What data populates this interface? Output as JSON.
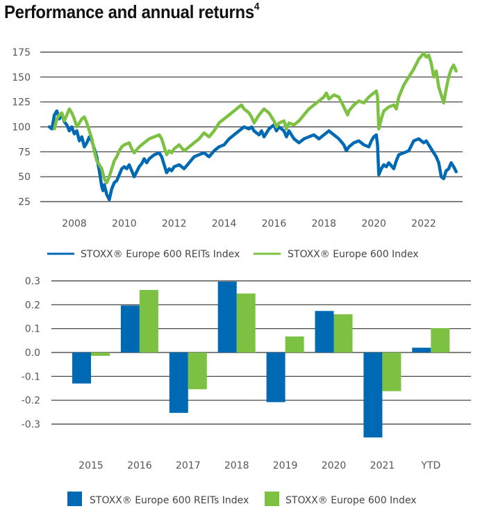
{
  "title": {
    "text": "Performance and annual returns",
    "footnote": "4"
  },
  "colors": {
    "reits": "#0069b4",
    "stoxx": "#7dc143",
    "grid": "#333333",
    "tick_text": "#666666"
  },
  "chart_data": [
    {
      "type": "line",
      "title": "Performance",
      "xlabel": "",
      "ylabel": "",
      "xlim": [
        2006.9,
        2023.4
      ],
      "ylim": [
        25,
        175
      ],
      "yticks": [
        175,
        150,
        125,
        100,
        75,
        50,
        25
      ],
      "xticks": [
        2008,
        2010,
        2012,
        2014,
        2016,
        2018,
        2020,
        2022
      ],
      "xtick_labels": [
        "2008",
        "2010",
        "2012",
        "2014",
        "2016",
        "2018",
        "2020",
        "2022"
      ],
      "grid": true,
      "legend": "bottom",
      "series": [
        {
          "name": "STOXX® Europe 600 REITs Index",
          "color": "#0069b4",
          "points": [
            [
              2007.0,
              100
            ],
            [
              2007.1,
              98
            ],
            [
              2007.2,
              112
            ],
            [
              2007.3,
              116
            ],
            [
              2007.4,
              108
            ],
            [
              2007.5,
              113
            ],
            [
              2007.6,
              105
            ],
            [
              2007.7,
              102
            ],
            [
              2007.8,
              96
            ],
            [
              2007.9,
              100
            ],
            [
              2008.0,
              93
            ],
            [
              2008.1,
              96
            ],
            [
              2008.2,
              86
            ],
            [
              2008.3,
              90
            ],
            [
              2008.4,
              80
            ],
            [
              2008.5,
              84
            ],
            [
              2008.6,
              90
            ],
            [
              2008.7,
              86
            ],
            [
              2008.8,
              78
            ],
            [
              2008.9,
              70
            ],
            [
              2009.0,
              56
            ],
            [
              2009.1,
              40
            ],
            [
              2009.15,
              36
            ],
            [
              2009.2,
              42
            ],
            [
              2009.3,
              32
            ],
            [
              2009.4,
              27
            ],
            [
              2009.5,
              38
            ],
            [
              2009.6,
              44
            ],
            [
              2009.7,
              46
            ],
            [
              2009.8,
              52
            ],
            [
              2009.9,
              58
            ],
            [
              2010.0,
              60
            ],
            [
              2010.1,
              58
            ],
            [
              2010.2,
              62
            ],
            [
              2010.3,
              56
            ],
            [
              2010.4,
              50
            ],
            [
              2010.5,
              55
            ],
            [
              2010.6,
              60
            ],
            [
              2010.7,
              63
            ],
            [
              2010.8,
              68
            ],
            [
              2010.9,
              64
            ],
            [
              2011.0,
              68
            ],
            [
              2011.2,
              72
            ],
            [
              2011.4,
              74
            ],
            [
              2011.5,
              70
            ],
            [
              2011.6,
              62
            ],
            [
              2011.7,
              54
            ],
            [
              2011.8,
              58
            ],
            [
              2011.9,
              56
            ],
            [
              2012.0,
              60
            ],
            [
              2012.2,
              62
            ],
            [
              2012.4,
              58
            ],
            [
              2012.6,
              64
            ],
            [
              2012.8,
              70
            ],
            [
              2013.0,
              72
            ],
            [
              2013.2,
              74
            ],
            [
              2013.4,
              70
            ],
            [
              2013.6,
              76
            ],
            [
              2013.8,
              80
            ],
            [
              2014.0,
              82
            ],
            [
              2014.2,
              88
            ],
            [
              2014.4,
              92
            ],
            [
              2014.6,
              96
            ],
            [
              2014.8,
              100
            ],
            [
              2015.0,
              98
            ],
            [
              2015.1,
              100
            ],
            [
              2015.2,
              96
            ],
            [
              2015.4,
              92
            ],
            [
              2015.5,
              96
            ],
            [
              2015.6,
              90
            ],
            [
              2015.8,
              98
            ],
            [
              2016.0,
              102
            ],
            [
              2016.1,
              96
            ],
            [
              2016.2,
              100
            ],
            [
              2016.4,
              96
            ],
            [
              2016.5,
              90
            ],
            [
              2016.6,
              96
            ],
            [
              2016.8,
              88
            ],
            [
              2017.0,
              84
            ],
            [
              2017.2,
              88
            ],
            [
              2017.4,
              90
            ],
            [
              2017.6,
              92
            ],
            [
              2017.8,
              88
            ],
            [
              2018.0,
              92
            ],
            [
              2018.2,
              96
            ],
            [
              2018.3,
              94
            ],
            [
              2018.5,
              90
            ],
            [
              2018.6,
              88
            ],
            [
              2018.8,
              82
            ],
            [
              2018.9,
              76
            ],
            [
              2019.0,
              80
            ],
            [
              2019.2,
              84
            ],
            [
              2019.4,
              86
            ],
            [
              2019.6,
              82
            ],
            [
              2019.8,
              80
            ],
            [
              2019.9,
              86
            ],
            [
              2020.0,
              90
            ],
            [
              2020.1,
              92
            ],
            [
              2020.15,
              82
            ],
            [
              2020.2,
              52
            ],
            [
              2020.3,
              58
            ],
            [
              2020.4,
              62
            ],
            [
              2020.5,
              60
            ],
            [
              2020.6,
              64
            ],
            [
              2020.8,
              58
            ],
            [
              2020.9,
              66
            ],
            [
              2021.0,
              72
            ],
            [
              2021.2,
              74
            ],
            [
              2021.4,
              76
            ],
            [
              2021.6,
              86
            ],
            [
              2021.8,
              88
            ],
            [
              2022.0,
              84
            ],
            [
              2022.1,
              86
            ],
            [
              2022.2,
              82
            ],
            [
              2022.4,
              74
            ],
            [
              2022.5,
              70
            ],
            [
              2022.6,
              64
            ],
            [
              2022.7,
              50
            ],
            [
              2022.8,
              48
            ],
            [
              2022.9,
              56
            ],
            [
              2023.0,
              58
            ],
            [
              2023.1,
              64
            ],
            [
              2023.2,
              60
            ],
            [
              2023.3,
              55
            ]
          ]
        },
        {
          "name": "STOXX® Europe 600 Index",
          "color": "#7dc143",
          "points": [
            [
              2007.2,
              98
            ],
            [
              2007.3,
              108
            ],
            [
              2007.4,
              112
            ],
            [
              2007.5,
              114
            ],
            [
              2007.6,
              106
            ],
            [
              2007.7,
              112
            ],
            [
              2007.8,
              118
            ],
            [
              2007.9,
              114
            ],
            [
              2008.0,
              108
            ],
            [
              2008.1,
              100
            ],
            [
              2008.2,
              104
            ],
            [
              2008.3,
              108
            ],
            [
              2008.4,
              110
            ],
            [
              2008.5,
              104
            ],
            [
              2008.6,
              96
            ],
            [
              2008.7,
              88
            ],
            [
              2008.8,
              76
            ],
            [
              2008.9,
              66
            ],
            [
              2009.0,
              62
            ],
            [
              2009.1,
              58
            ],
            [
              2009.2,
              48
            ],
            [
              2009.3,
              44
            ],
            [
              2009.4,
              50
            ],
            [
              2009.5,
              58
            ],
            [
              2009.6,
              66
            ],
            [
              2009.7,
              70
            ],
            [
              2009.8,
              76
            ],
            [
              2009.9,
              80
            ],
            [
              2010.0,
              82
            ],
            [
              2010.2,
              84
            ],
            [
              2010.3,
              78
            ],
            [
              2010.4,
              74
            ],
            [
              2010.6,
              80
            ],
            [
              2010.8,
              84
            ],
            [
              2011.0,
              88
            ],
            [
              2011.2,
              90
            ],
            [
              2011.4,
              92
            ],
            [
              2011.5,
              88
            ],
            [
              2011.6,
              80
            ],
            [
              2011.7,
              72
            ],
            [
              2011.8,
              76
            ],
            [
              2011.9,
              74
            ],
            [
              2012.0,
              78
            ],
            [
              2012.2,
              82
            ],
            [
              2012.4,
              76
            ],
            [
              2012.6,
              80
            ],
            [
              2012.8,
              84
            ],
            [
              2013.0,
              88
            ],
            [
              2013.2,
              94
            ],
            [
              2013.4,
              90
            ],
            [
              2013.6,
              96
            ],
            [
              2013.8,
              104
            ],
            [
              2014.0,
              108
            ],
            [
              2014.2,
              112
            ],
            [
              2014.4,
              116
            ],
            [
              2014.6,
              120
            ],
            [
              2014.7,
              122
            ],
            [
              2014.8,
              118
            ],
            [
              2015.0,
              114
            ],
            [
              2015.1,
              110
            ],
            [
              2015.2,
              104
            ],
            [
              2015.4,
              112
            ],
            [
              2015.6,
              118
            ],
            [
              2015.8,
              114
            ],
            [
              2016.0,
              106
            ],
            [
              2016.1,
              100
            ],
            [
              2016.2,
              104
            ],
            [
              2016.4,
              106
            ],
            [
              2016.5,
              98
            ],
            [
              2016.6,
              104
            ],
            [
              2016.8,
              102
            ],
            [
              2017.0,
              106
            ],
            [
              2017.2,
              112
            ],
            [
              2017.4,
              118
            ],
            [
              2017.6,
              122
            ],
            [
              2017.8,
              126
            ],
            [
              2018.0,
              130
            ],
            [
              2018.1,
              134
            ],
            [
              2018.2,
              128
            ],
            [
              2018.4,
              132
            ],
            [
              2018.6,
              130
            ],
            [
              2018.8,
              120
            ],
            [
              2018.95,
              112
            ],
            [
              2019.0,
              116
            ],
            [
              2019.2,
              122
            ],
            [
              2019.4,
              126
            ],
            [
              2019.6,
              124
            ],
            [
              2019.8,
              130
            ],
            [
              2020.0,
              134
            ],
            [
              2020.1,
              136
            ],
            [
              2020.15,
              130
            ],
            [
              2020.2,
              98
            ],
            [
              2020.3,
              108
            ],
            [
              2020.4,
              116
            ],
            [
              2020.6,
              120
            ],
            [
              2020.8,
              122
            ],
            [
              2020.9,
              118
            ],
            [
              2021.0,
              130
            ],
            [
              2021.2,
              142
            ],
            [
              2021.4,
              150
            ],
            [
              2021.6,
              158
            ],
            [
              2021.8,
              168
            ],
            [
              2022.0,
              174
            ],
            [
              2022.1,
              170
            ],
            [
              2022.2,
              172
            ],
            [
              2022.3,
              164
            ],
            [
              2022.4,
              150
            ],
            [
              2022.5,
              156
            ],
            [
              2022.6,
              140
            ],
            [
              2022.7,
              132
            ],
            [
              2022.8,
              124
            ],
            [
              2022.9,
              138
            ],
            [
              2023.0,
              150
            ],
            [
              2023.1,
              158
            ],
            [
              2023.2,
              162
            ],
            [
              2023.3,
              156
            ]
          ]
        }
      ]
    },
    {
      "type": "bar",
      "title": "Annual returns",
      "xlabel": "",
      "ylabel": "",
      "categories": [
        "2015",
        "2016",
        "2017",
        "2018",
        "2019",
        "2020",
        "2021",
        "YTD"
      ],
      "ylim": [
        -0.3,
        0.3
      ],
      "yticks": [
        "0.3",
        "0.2",
        "0.1",
        "0.0",
        "-0.1",
        "-0.2",
        "-0.3"
      ],
      "ytick_values": [
        0.3,
        0.2,
        0.1,
        0.0,
        -0.1,
        -0.2,
        -0.3
      ],
      "grid": true,
      "legend": "bottom",
      "series": [
        {
          "name": "STOXX® Europe 600 REITs Index",
          "color": "#0069b4",
          "values": [
            -0.13,
            0.197,
            -0.253,
            0.297,
            -0.208,
            0.174,
            -0.356,
            0.02
          ]
        },
        {
          "name": "STOXX® Europe 600 Index",
          "color": "#7dc143",
          "values": [
            -0.014,
            0.262,
            -0.154,
            0.247,
            0.067,
            0.16,
            -0.162,
            0.102
          ]
        }
      ]
    }
  ],
  "legends": {
    "line": [
      {
        "label": "STOXX® Europe 600 REITs Index",
        "icon": "line-swatch"
      },
      {
        "label": "STOXX® Europe 600 Index",
        "icon": "line-swatch"
      }
    ],
    "bar": [
      {
        "label": "STOXX® Europe 600 REITs Index",
        "icon": "square-swatch"
      },
      {
        "label": "STOXX® Europe 600 Index",
        "icon": "square-swatch"
      }
    ]
  }
}
